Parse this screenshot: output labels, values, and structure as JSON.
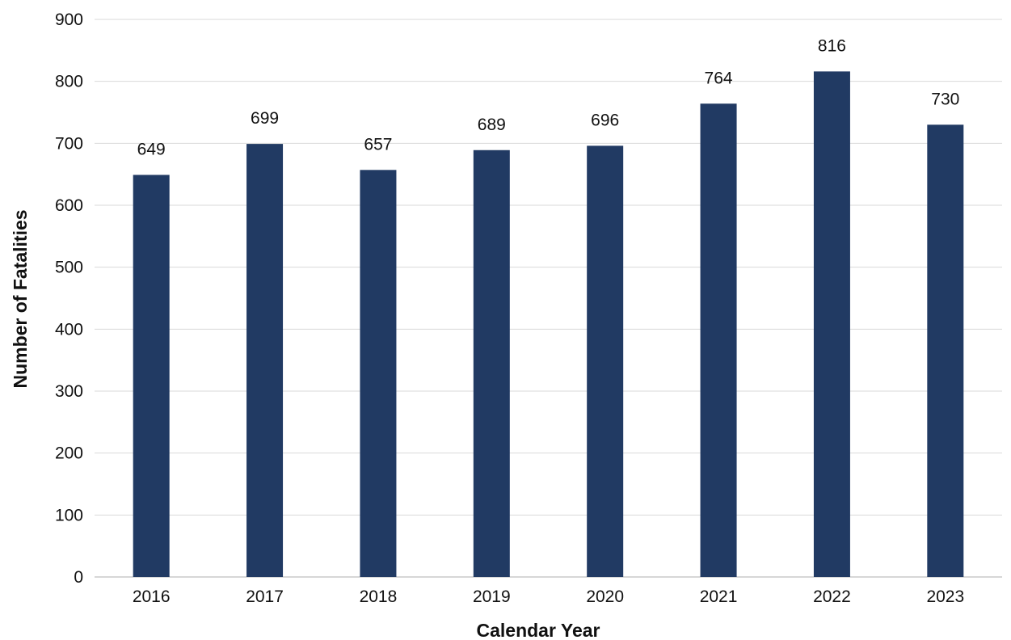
{
  "chart_data": {
    "type": "bar",
    "xlabel": "Calendar Year",
    "ylabel": "Number of Fatalities",
    "categories": [
      "2016",
      "2017",
      "2018",
      "2019",
      "2020",
      "2021",
      "2022",
      "2023"
    ],
    "values": [
      649,
      699,
      657,
      689,
      696,
      764,
      816,
      730
    ],
    "ylim": [
      0,
      900
    ],
    "yticks": [
      "0",
      "100",
      "200",
      "300",
      "400",
      "500",
      "600",
      "700",
      "800",
      "900"
    ],
    "grid": true,
    "bar_color": "#213A63",
    "data_labels": true
  }
}
